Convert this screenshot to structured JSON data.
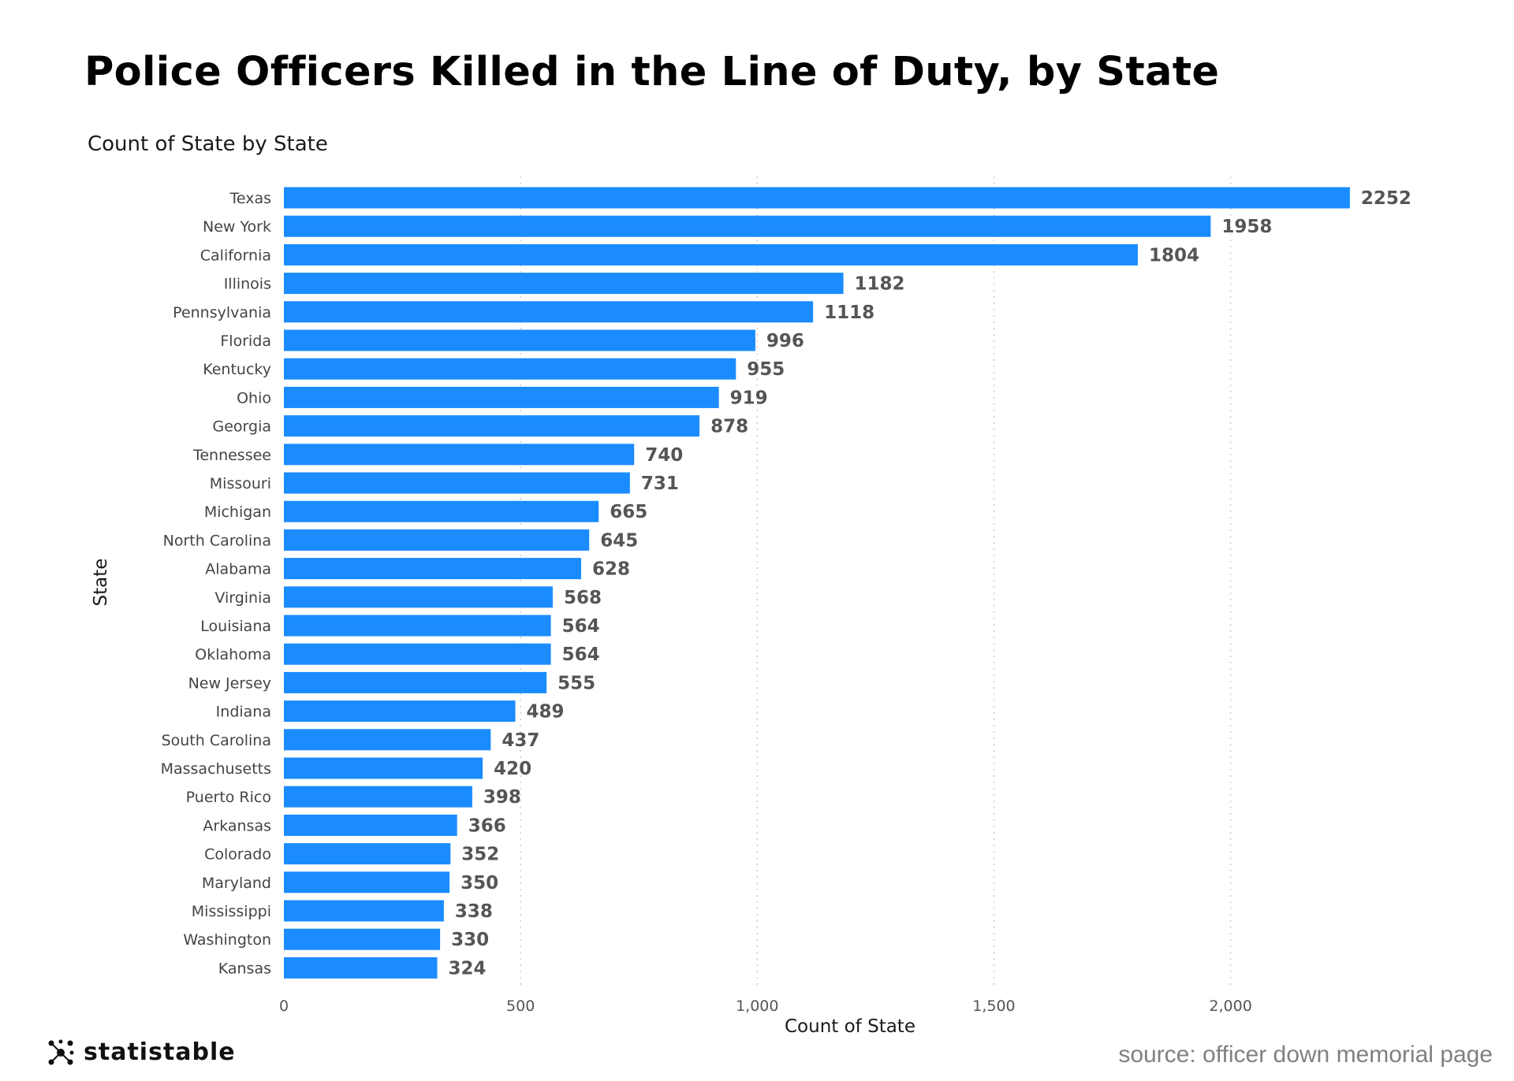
{
  "title": "Police Officers Killed in the Line of Duty, by State",
  "subtitle": "Count of State by State",
  "brand": {
    "name": "statistable"
  },
  "source": "source: officer down memorial page",
  "colors": {
    "bar": "#1a8cff",
    "label": "#555555",
    "grid": "#cccccc"
  },
  "chart_data": {
    "type": "bar",
    "orientation": "horizontal",
    "title": "Police Officers Killed in the Line of Duty, by State",
    "subtitle": "Count of State by State",
    "xlabel": "Count of State",
    "ylabel": "State",
    "xlim": [
      0,
      2400
    ],
    "xticks": [
      0,
      500,
      1000,
      1500,
      2000
    ],
    "xtick_labels": [
      "0",
      "500",
      "1,000",
      "1,500",
      "2,000"
    ],
    "grid": "vertical dotted",
    "categories": [
      "Texas",
      "New York",
      "California",
      "Illinois",
      "Pennsylvania",
      "Florida",
      "Kentucky",
      "Ohio",
      "Georgia",
      "Tennessee",
      "Missouri",
      "Michigan",
      "North Carolina",
      "Alabama",
      "Virginia",
      "Louisiana",
      "Oklahoma",
      "New Jersey",
      "Indiana",
      "South Carolina",
      "Massachusetts",
      "Puerto Rico",
      "Arkansas",
      "Colorado",
      "Maryland",
      "Mississippi",
      "Washington",
      "Kansas"
    ],
    "values": [
      2252,
      1958,
      1804,
      1182,
      1118,
      996,
      955,
      919,
      878,
      740,
      731,
      665,
      645,
      628,
      568,
      564,
      564,
      555,
      489,
      437,
      420,
      398,
      366,
      352,
      350,
      338,
      330,
      324
    ]
  }
}
